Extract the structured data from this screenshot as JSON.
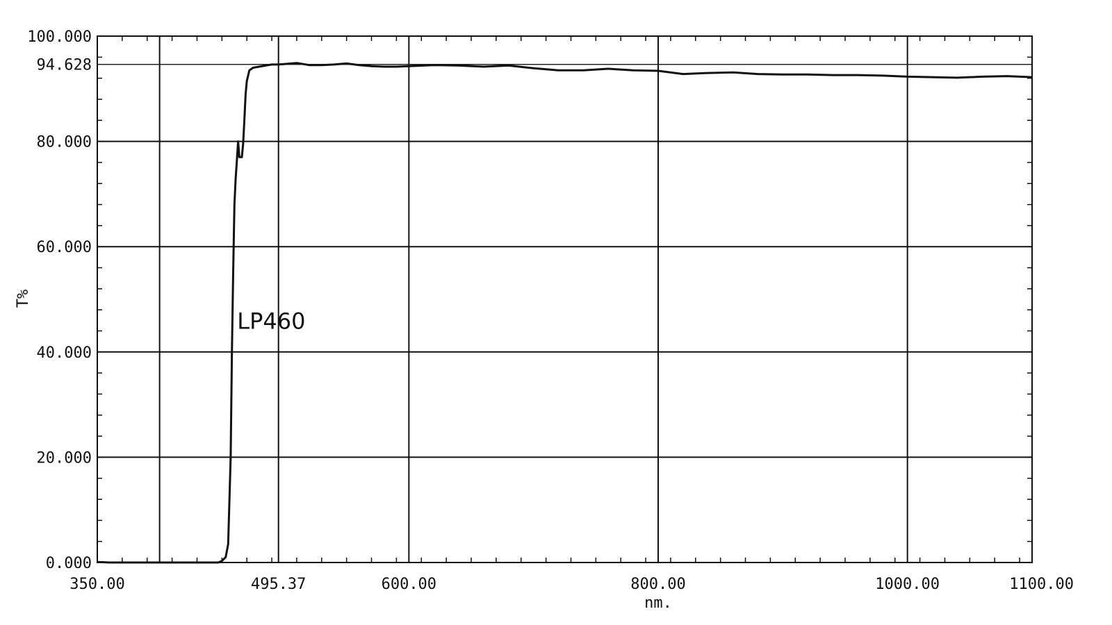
{
  "chart_data": {
    "type": "line",
    "title": "",
    "xlabel": "nm.",
    "ylabel": "T%",
    "xlim": [
      350,
      1100
    ],
    "ylim": [
      0,
      100
    ],
    "grid": true,
    "x_ticks": [
      350,
      495.37,
      600,
      800,
      1000,
      1100
    ],
    "x_tick_labels": [
      "350.00",
      "495.37",
      "600.00",
      "800.00",
      "1000.00",
      "1100.00"
    ],
    "x_gridlines": [
      400,
      495.37,
      600,
      800,
      1000
    ],
    "y_ticks": [
      0,
      20,
      40,
      60,
      80,
      94.628,
      100
    ],
    "y_tick_labels": [
      "0.000",
      "20.000",
      "40.000",
      "60.000",
      "80.000",
      "94.628",
      "100.000"
    ],
    "annotations": [
      {
        "text": "LP460",
        "x": 460,
        "y": 46
      }
    ],
    "series": [
      {
        "name": "LP460",
        "color": "#111111",
        "x": [
          350,
          360,
          380,
          400,
          420,
          440,
          447,
          450,
          453,
          455,
          457,
          458,
          459,
          460,
          461,
          462,
          463,
          464,
          466,
          467,
          468,
          469,
          470,
          472,
          475,
          480,
          485,
          490,
          495,
          500,
          510,
          520,
          530,
          540,
          550,
          560,
          570,
          580,
          590,
          600,
          620,
          640,
          660,
          680,
          700,
          720,
          740,
          760,
          780,
          800,
          820,
          840,
          860,
          880,
          900,
          920,
          940,
          960,
          980,
          1000,
          1020,
          1040,
          1060,
          1080,
          1100
        ],
        "y": [
          0.1,
          0.0,
          0.0,
          0.0,
          0.0,
          0.0,
          0.0,
          0.3,
          1.0,
          3.5,
          20.0,
          40.0,
          55.0,
          68.0,
          73.0,
          76.5,
          80.0,
          77.0,
          77.0,
          79.5,
          84.0,
          89.0,
          91.5,
          93.5,
          94.0,
          94.2,
          94.4,
          94.6,
          94.6,
          94.7,
          94.9,
          94.5,
          94.5,
          94.6,
          94.8,
          94.5,
          94.3,
          94.2,
          94.2,
          94.3,
          94.5,
          94.4,
          94.2,
          94.4,
          93.9,
          93.5,
          93.5,
          93.8,
          93.5,
          93.4,
          92.8,
          93.0,
          93.1,
          92.8,
          92.7,
          92.7,
          92.6,
          92.6,
          92.5,
          92.3,
          92.2,
          92.1,
          92.3,
          92.4,
          92.2
        ]
      }
    ]
  }
}
